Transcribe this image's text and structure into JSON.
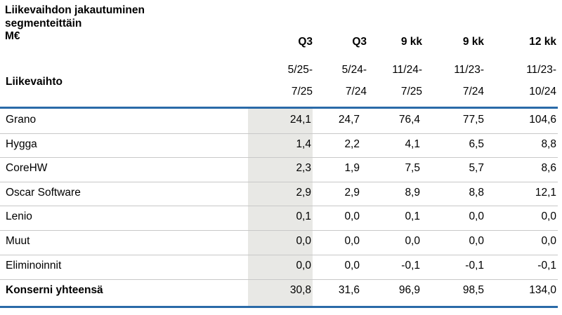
{
  "title": {
    "line1": "Liikevaihdon jakautuminen",
    "line2": "segmenteittäin",
    "line3": "M€"
  },
  "header": {
    "row_label": "Liikevaihto",
    "columns": [
      {
        "label": "Q3",
        "period_top": "5/25-",
        "period_bottom": "7/25"
      },
      {
        "label": "Q3",
        "period_top": "5/24-",
        "period_bottom": "7/24"
      },
      {
        "label": "9 kk",
        "period_top": "11/24-",
        "period_bottom": "7/25"
      },
      {
        "label": "9 kk",
        "period_top": "11/23-",
        "period_bottom": "7/24"
      },
      {
        "label": "12 kk",
        "period_top": "11/23-",
        "period_bottom": "10/24"
      }
    ]
  },
  "rows": [
    {
      "name": "Grano",
      "values": [
        "24,1",
        "24,7",
        "76,4",
        "77,5",
        "104,6"
      ]
    },
    {
      "name": "Hygga",
      "values": [
        "1,4",
        "2,2",
        "4,1",
        "6,5",
        "8,8"
      ]
    },
    {
      "name": "CoreHW",
      "values": [
        "2,3",
        "1,9",
        "7,5",
        "5,7",
        "8,6"
      ]
    },
    {
      "name": "Oscar Software",
      "values": [
        "2,9",
        "2,9",
        "8,9",
        "8,8",
        "12,1"
      ]
    },
    {
      "name": "Lenio",
      "values": [
        "0,1",
        "0,0",
        "0,1",
        "0,0",
        "0,0"
      ]
    },
    {
      "name": "Muut",
      "values": [
        "0,0",
        "0,0",
        "0,0",
        "0,0",
        "0,0"
      ]
    },
    {
      "name": "Eliminoinnit",
      "values": [
        "0,0",
        "0,0",
        "-0,1",
        "-0,1",
        "-0,1"
      ]
    },
    {
      "name": "Konserni yhteensä",
      "values": [
        "30,8",
        "31,6",
        "96,9",
        "98,5",
        "134,0"
      ]
    }
  ]
}
